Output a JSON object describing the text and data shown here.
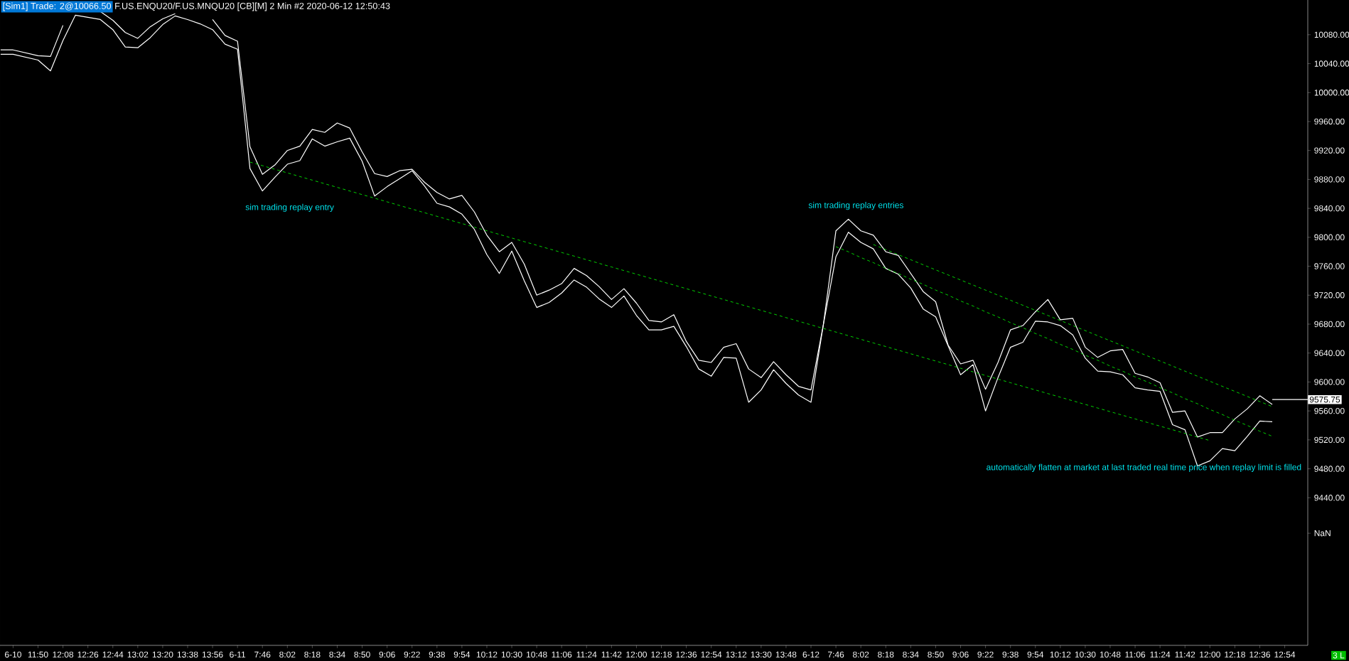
{
  "chart_data": {
    "type": "line",
    "title": "[Sim1]  Trade: 2@10066.50",
    "subtitle": "F.US.ENQU20/F.US.MNQU20 [CB][M]  2 Min   #2 2020-06-12 12:50:43",
    "categories": [
      null,
      "6-10",
      null,
      "11:50",
      null,
      "12:08",
      null,
      "12:26",
      null,
      "12:44",
      null,
      "13:02",
      null,
      "13:20",
      null,
      "13:38",
      null,
      "13:56",
      null,
      "6-11",
      null,
      "7:46",
      null,
      "8:02",
      null,
      "8:18",
      null,
      "8:34",
      null,
      "8:50",
      null,
      "9:06",
      null,
      "9:22",
      null,
      "9:38",
      null,
      "9:54",
      null,
      "10:12",
      null,
      "10:30",
      null,
      "10:48",
      null,
      "11:06",
      null,
      "11:24",
      null,
      "11:42",
      null,
      "12:00",
      null,
      "12:18",
      null,
      "12:36",
      null,
      "12:54",
      null,
      "13:12",
      null,
      "13:30",
      null,
      "13:48",
      null,
      "6-12",
      null,
      "7:46",
      null,
      "8:02",
      null,
      "8:18",
      null,
      "8:34",
      null,
      "8:50",
      null,
      "9:06",
      null,
      "9:22",
      null,
      "9:38",
      null,
      "9:54",
      null,
      "10:12",
      null,
      "10:30",
      null,
      "10:48",
      null,
      "11:06",
      null,
      "11:24",
      null,
      "11:42",
      null,
      "12:00",
      null,
      "12:18",
      null,
      "12:36",
      null,
      "12:54"
    ],
    "ylim": [
      9236,
      10128
    ],
    "yticks": [
      {
        "value": 9391,
        "label": "NaN"
      },
      {
        "value": 9440,
        "label": "9440.00"
      },
      {
        "value": 9480,
        "label": "9480.00"
      },
      {
        "value": 9520,
        "label": "9520.00"
      },
      {
        "value": 9560,
        "label": "9560.00"
      },
      {
        "value": 9600,
        "label": "9600.00"
      },
      {
        "value": 9640,
        "label": "9640.00"
      },
      {
        "value": 9680,
        "label": "9680.00"
      },
      {
        "value": 9720,
        "label": "9720.00"
      },
      {
        "value": 9760,
        "label": "9760.00"
      },
      {
        "value": 9800,
        "label": "9800.00"
      },
      {
        "value": 9840,
        "label": "9840.00"
      },
      {
        "value": 9880,
        "label": "9880.00"
      },
      {
        "value": 9920,
        "label": "9920.00"
      },
      {
        "value": 9960,
        "label": "9960.00"
      },
      {
        "value": 10000,
        "label": "10000.00"
      },
      {
        "value": 10040,
        "label": "10040.00"
      },
      {
        "value": 10080,
        "label": "10080.00"
      }
    ],
    "series": [
      {
        "color": "#ffffff",
        "values": [
          10059,
          10059,
          10055,
          10051,
          10050,
          10093,
          null,
          null,
          10112,
          10100,
          10083,
          10075,
          10091,
          10102,
          10109,
          null,
          null,
          10101,
          10079,
          10071,
          9925,
          9887,
          9900,
          9920,
          9926,
          9949,
          9945,
          9958,
          9951,
          9918,
          9888,
          9884,
          9892,
          9894,
          9876,
          9862,
          9853,
          9858,
          9835,
          9803,
          9780,
          9793,
          9763,
          9720,
          9727,
          9736,
          9757,
          9747,
          9732,
          9714,
          9729,
          9709,
          9685,
          9683,
          9693,
          9656,
          9630,
          9627,
          9648,
          9653,
          9618,
          9606,
          9628,
          9610,
          9594,
          9589,
          9680,
          9809,
          9825,
          9809,
          9803,
          9780,
          9775,
          9750,
          9725,
          9711,
          9651,
          9625,
          9630,
          9590,
          9627,
          9672,
          9678,
          9697,
          9714,
          9686,
          9688,
          9648,
          9634,
          9643,
          9645,
          9612,
          9607,
          9599,
          9558,
          9560,
          9524,
          9530,
          9530,
          9549,
          9563,
          9581,
          9569,
          null
        ]
      },
      {
        "color": "#ffffff",
        "values": [
          10053,
          10053,
          10049,
          10045,
          10030,
          10072,
          10107,
          10104,
          10101,
          10087,
          10063,
          10062,
          10076,
          10094,
          10106,
          10101,
          10095,
          10087,
          10067,
          10060,
          9895,
          9864,
          9883,
          9901,
          9906,
          9936,
          9926,
          9932,
          9937,
          9905,
          9857,
          9870,
          9881,
          9892,
          9871,
          9847,
          9842,
          9832,
          9811,
          9776,
          9750,
          9781,
          9740,
          9703,
          9710,
          9723,
          9741,
          9731,
          9715,
          9703,
          9719,
          9692,
          9672,
          9672,
          9677,
          9649,
          9618,
          9608,
          9634,
          9633,
          9572,
          9589,
          9617,
          9598,
          9582,
          9572,
          9680,
          9773,
          9807,
          9793,
          9784,
          9757,
          9749,
          9730,
          9701,
          9690,
          9650,
          9610,
          9624,
          9560,
          9606,
          9648,
          9655,
          9684,
          9683,
          9678,
          9665,
          9633,
          9615,
          9614,
          9610,
          9592,
          9589,
          9587,
          9541,
          9534,
          9484,
          9491,
          9508,
          9505,
          9525,
          9546,
          9545,
          null
        ]
      },
      {
        "color": "#00e000",
        "line_style": "dashed",
        "values": [
          null,
          null,
          null,
          null,
          null,
          null,
          null,
          null,
          null,
          null,
          null,
          null,
          null,
          null,
          null,
          null,
          null,
          null,
          null,
          null,
          9904,
          9899,
          9894,
          9889,
          9884,
          9879,
          9874,
          9869,
          9864,
          9859,
          9854,
          9849,
          9844,
          9839,
          9834,
          9829,
          9824,
          9819,
          9814,
          9809,
          9804,
          9799,
          9794,
          9789,
          9784,
          9779,
          9774,
          9769,
          9764,
          9759,
          9754,
          9749,
          9744,
          9739,
          9734,
          9729,
          9724,
          9719,
          9714,
          9709,
          9704,
          9699,
          9694,
          9689,
          9684,
          9679,
          9674,
          9669,
          9664,
          9659,
          9654,
          9649,
          9644,
          9639,
          9634,
          9629,
          9624,
          9619,
          9614,
          9609,
          9604,
          9599,
          9594,
          9589,
          9584,
          9579,
          9574,
          9569,
          9564,
          9559,
          9554,
          9549,
          9544,
          9539,
          9534,
          9529,
          9524,
          9519,
          null,
          null,
          null,
          null,
          null,
          null
        ]
      },
      {
        "color": "#00e000",
        "line_style": "dashed",
        "values": [
          null,
          null,
          null,
          null,
          null,
          null,
          null,
          null,
          null,
          null,
          null,
          null,
          null,
          null,
          null,
          null,
          null,
          null,
          null,
          null,
          null,
          null,
          null,
          null,
          null,
          null,
          null,
          null,
          null,
          null,
          null,
          null,
          null,
          null,
          null,
          null,
          null,
          null,
          null,
          null,
          null,
          null,
          null,
          null,
          null,
          null,
          null,
          null,
          null,
          null,
          null,
          null,
          null,
          null,
          null,
          null,
          null,
          null,
          null,
          null,
          null,
          null,
          null,
          null,
          null,
          null,
          null,
          9787,
          9780,
          9772,
          9765,
          9757,
          9750,
          9742,
          9735,
          9727,
          9720,
          9712,
          9705,
          9697,
          9690,
          9682,
          9675,
          9667,
          9660,
          9652,
          9645,
          9637,
          9630,
          9622,
          9615,
          9607,
          9600,
          9592,
          9585,
          9577,
          9570,
          9562,
          9555,
          9547,
          9540,
          9532,
          9525,
          null
        ]
      },
      {
        "color": "#00e000",
        "line_style": "dashed",
        "values": [
          null,
          null,
          null,
          null,
          null,
          null,
          null,
          null,
          null,
          null,
          null,
          null,
          null,
          null,
          null,
          null,
          null,
          null,
          null,
          null,
          null,
          null,
          null,
          null,
          null,
          null,
          null,
          null,
          null,
          null,
          null,
          null,
          null,
          null,
          null,
          null,
          null,
          null,
          null,
          null,
          null,
          null,
          null,
          null,
          null,
          null,
          null,
          null,
          null,
          null,
          null,
          null,
          null,
          null,
          null,
          null,
          null,
          null,
          null,
          null,
          null,
          null,
          null,
          null,
          null,
          null,
          null,
          null,
          null,
          null,
          9790,
          9783,
          9776,
          9769,
          9762,
          9755,
          9748,
          9741,
          9734,
          9727,
          9720,
          9713,
          9706,
          9699,
          9692,
          9685,
          9678,
          9671,
          9664,
          9657,
          9650,
          9643,
          9636,
          9629,
          9622,
          9615,
          9608,
          9601,
          9594,
          9587,
          9580,
          9573,
          9566,
          null
        ]
      }
    ],
    "ref_lines": [
      {
        "axis": "y",
        "value": 9575.75,
        "label": "9575.75",
        "color": "#ffffff"
      }
    ],
    "annotations": [
      "sim trading replay entry",
      "sim trading replay entries",
      "automatically flatten at market at last traded real time price when replay limit is filled",
      "3 L"
    ]
  }
}
